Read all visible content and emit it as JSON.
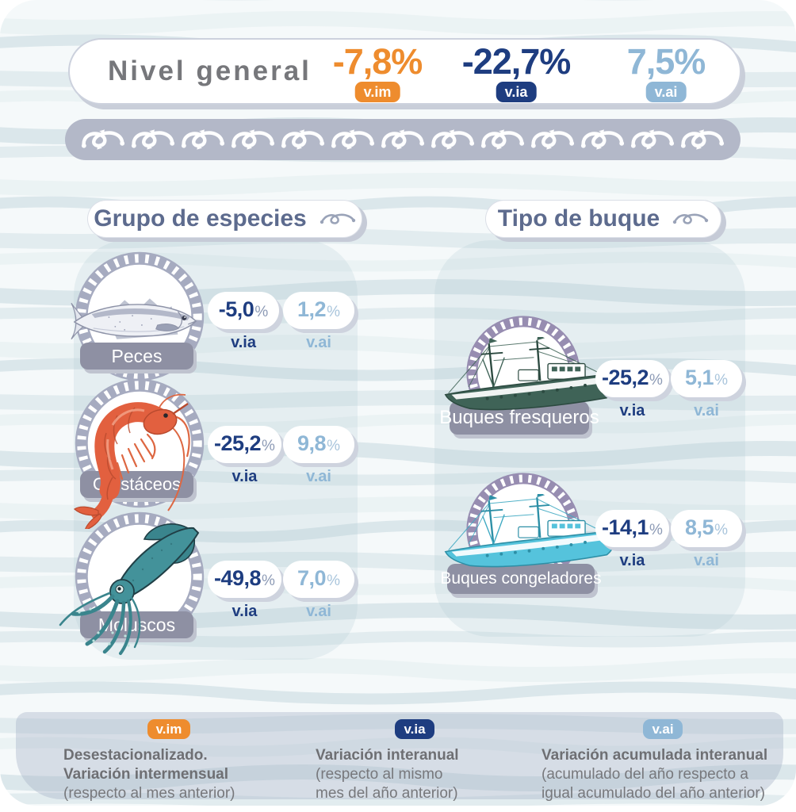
{
  "colors": {
    "orange": "#ee8c2e",
    "navy": "#1e3d80",
    "light_blue": "#8fb7d6",
    "title_gray": "#76777b",
    "section_slate": "#5d6b8e",
    "chip_gray": "#8e90a3"
  },
  "unit": "%",
  "labels": {
    "vim": "v.im",
    "via": "v.ia",
    "vai": "v.ai"
  },
  "header": {
    "title": "Nivel general",
    "metrics": [
      {
        "value": "-7,8",
        "tag": "v.im"
      },
      {
        "value": "-22,7",
        "tag": "v.ia"
      },
      {
        "value": "7,5",
        "tag": "v.ai"
      }
    ]
  },
  "sections": [
    {
      "title": "Grupo de especies",
      "items": [
        {
          "label": "Peces",
          "via": "-5,0",
          "vai": "1,2"
        },
        {
          "label": "Crustáceos",
          "via": "-25,2",
          "vai": "9,8"
        },
        {
          "label": "Moluscos",
          "via": "-49,8",
          "vai": "7,0"
        }
      ]
    },
    {
      "title": "Tipo de buque",
      "items": [
        {
          "label": "Buques fresqueros",
          "via": "-25,2",
          "vai": "5,1"
        },
        {
          "label": "Buques congeladores",
          "via": "-14,1",
          "vai": "8,5"
        }
      ]
    }
  ],
  "legend": {
    "items": [
      {
        "tag": "v.im",
        "bold_lines": [
          "Desestacionalizado.",
          "Variación intermensual"
        ],
        "note_lines": [
          "(respecto al mes anterior)"
        ]
      },
      {
        "tag": "v.ia",
        "bold_lines": [
          "Variación interanual"
        ],
        "note_lines": [
          "(respecto al mismo",
          "mes del año anterior)"
        ]
      },
      {
        "tag": "v.ai",
        "bold_lines": [
          "Variación acumulada interanual"
        ],
        "note_lines": [
          "(acumulado del año respecto a",
          "igual acumulado del año anterior)"
        ]
      }
    ]
  },
  "chart_data": {
    "type": "table",
    "title": "Nivel general",
    "units": "%",
    "columns": [
      "v.im (variación intermensual desestacionalizada)",
      "v.ia (variación interanual)",
      "v.ai (variación acumulada interanual)"
    ],
    "rows": [
      {
        "category": "Nivel general",
        "v_im": -7.8,
        "v_ia": -22.7,
        "v_ai": 7.5
      },
      {
        "category": "Peces",
        "v_ia": -5.0,
        "v_ai": 1.2
      },
      {
        "category": "Crustáceos",
        "v_ia": -25.2,
        "v_ai": 9.8
      },
      {
        "category": "Moluscos",
        "v_ia": -49.8,
        "v_ai": 7.0
      },
      {
        "category": "Buques fresqueros",
        "v_ia": -25.2,
        "v_ai": 5.1
      },
      {
        "category": "Buques congeladores",
        "v_ia": -14.1,
        "v_ai": 8.5
      }
    ]
  }
}
